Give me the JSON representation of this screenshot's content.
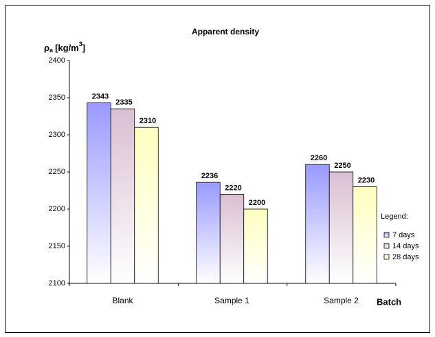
{
  "chart_data": {
    "type": "bar",
    "title": "Apparent density",
    "y_label": {
      "symbol": "ρ",
      "subscript": "a",
      "unit": "[kg/m",
      "superscript": "3",
      "close": "]"
    },
    "x_label": "Batch",
    "legend_title": "Legend:",
    "categories": [
      "Blank",
      "Sample 1",
      "Sample 2"
    ],
    "series": [
      {
        "name": "7 days",
        "color": "#9999ff",
        "values": [
          2343,
          2236,
          2260
        ]
      },
      {
        "name": "14 days",
        "color": "#d9bfd2",
        "values": [
          2335,
          2220,
          2250
        ]
      },
      {
        "name": "28 days",
        "color": "#ffffbf",
        "values": [
          2310,
          2200,
          2230
        ]
      }
    ],
    "ylim": [
      2100,
      2400
    ],
    "yticks": [
      2100,
      2150,
      2200,
      2250,
      2300,
      2350,
      2400
    ],
    "grid": false,
    "legend": "right"
  }
}
